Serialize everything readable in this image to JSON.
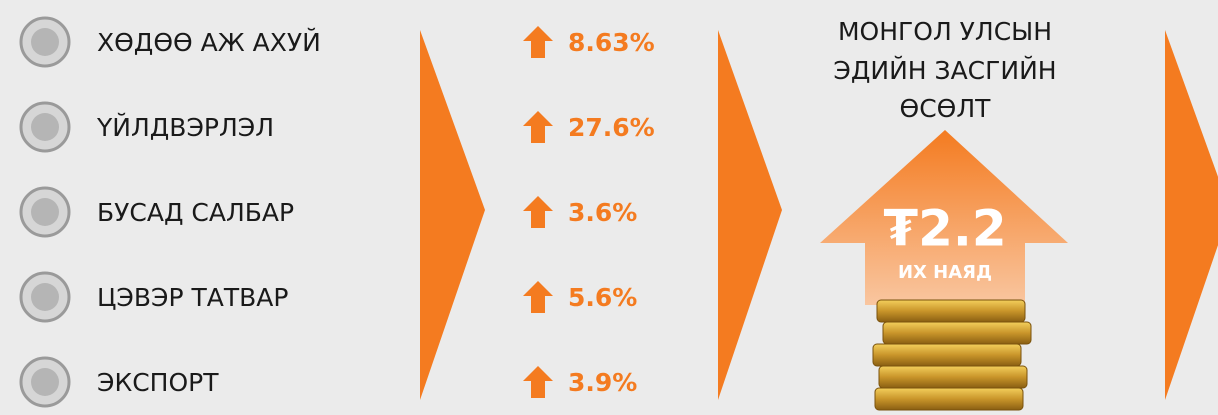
{
  "sectors": [
    {
      "label": "ХӨДӨӨ АЖ АХУЙ",
      "change": "8.63%"
    },
    {
      "label": "ҮЙЛДВЭРЛЭЛ",
      "change": "27.6%"
    },
    {
      "label": "БУСАД САЛБАР",
      "change": "3.6%"
    },
    {
      "label": "ЦЭВЭР ТАТВАР",
      "change": "5.6%"
    },
    {
      "label": "ЭКСПОРТ",
      "change": "3.9%"
    }
  ],
  "growth": {
    "title_lines": [
      "МОНГОЛ УЛСЫН",
      "ЭДИЙН ЗАСГИЙН",
      "ӨСӨЛТ"
    ],
    "amount": "₮2.2",
    "unit": "ИХ НАЯД"
  }
}
